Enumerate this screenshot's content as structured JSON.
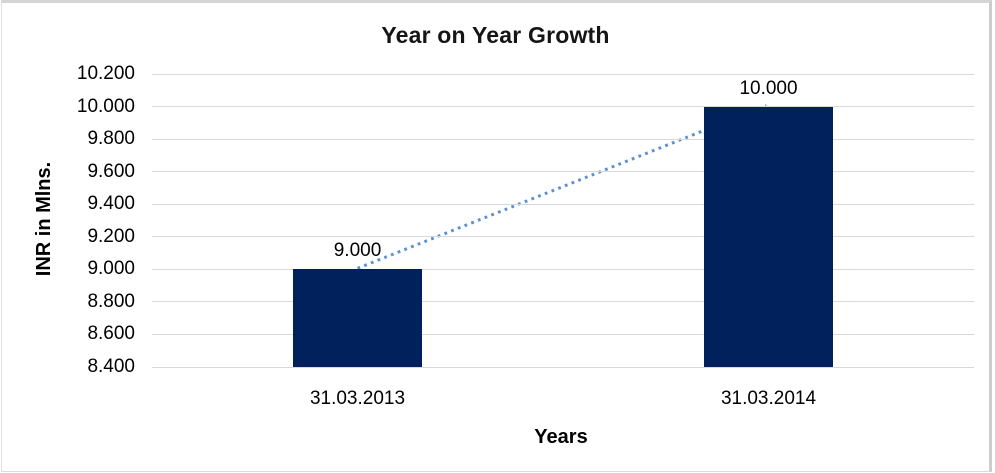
{
  "frame": {
    "border_color": "#D5D5D5",
    "background": "#FFFFFF"
  },
  "chart_data": {
    "type": "bar",
    "title": "Year on Year Growth",
    "xlabel": "Years",
    "ylabel": "INR in Mlns.",
    "categories": [
      "31.03.2013",
      "31.03.2014"
    ],
    "values": [
      9000,
      10000
    ],
    "data_labels": [
      "9.000",
      "10.000"
    ],
    "y_ticks": [
      {
        "value": 8400,
        "label": "8.400"
      },
      {
        "value": 8600,
        "label": "8.600"
      },
      {
        "value": 8800,
        "label": "8.800"
      },
      {
        "value": 9000,
        "label": "9.000"
      },
      {
        "value": 9200,
        "label": "9.200"
      },
      {
        "value": 9400,
        "label": "9.400"
      },
      {
        "value": 9600,
        "label": "9.600"
      },
      {
        "value": 9800,
        "label": "9.800"
      },
      {
        "value": 10000,
        "label": "10.000"
      },
      {
        "value": 10200,
        "label": "10.200"
      }
    ],
    "ylim": [
      8400,
      10200
    ],
    "grid": true,
    "legend": "none",
    "bar_color": "#01215C",
    "gridline_color": "#D9D9D9",
    "text_color": "#000000",
    "trendline": {
      "type": "linear",
      "style": "dotted",
      "color": "#5B91D0",
      "from_value": 9000,
      "to_value": 10000
    }
  }
}
